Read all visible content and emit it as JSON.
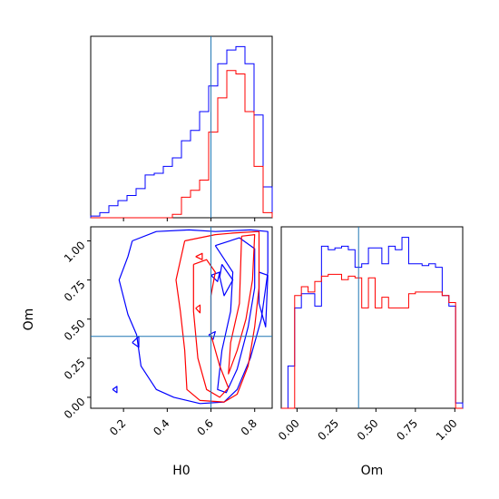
{
  "chart_data": {
    "type": "corner",
    "parameters": [
      "H0",
      "Om"
    ],
    "truth": {
      "H0": 0.6,
      "Om": 0.39
    },
    "series_colors": [
      "#0000ff",
      "#ff0000"
    ],
    "truth_line_color": "#1f77b4",
    "panels": [
      {
        "id": "H0-marginal",
        "type": "histogram",
        "param": "H0",
        "xlim": [
          0.05,
          0.88
        ],
        "ylim": [
          0,
          1.06
        ],
        "xticks": [
          0.2,
          0.4,
          0.6,
          0.8
        ],
        "show_yticks": false,
        "bin_edges": [
          0.05,
          0.0915,
          0.133,
          0.1745,
          0.216,
          0.2575,
          0.299,
          0.3405,
          0.382,
          0.4235,
          0.465,
          0.5065,
          0.548,
          0.5895,
          0.631,
          0.6725,
          0.714,
          0.7555,
          0.797,
          0.8385,
          0.88
        ],
        "series": [
          {
            "color": "#0000ff",
            "counts": [
              0.01,
              0.03,
              0.07,
              0.1,
              0.13,
              0.17,
              0.25,
              0.26,
              0.3,
              0.35,
              0.45,
              0.51,
              0.62,
              0.77,
              0.9,
              0.98,
              1.0,
              0.9,
              0.6,
              0.18
            ]
          },
          {
            "color": "#ff0000",
            "counts": [
              0,
              0,
              0,
              0,
              0,
              0,
              0,
              0,
              0,
              0.02,
              0.12,
              0.16,
              0.22,
              0.5,
              0.7,
              0.86,
              0.84,
              0.62,
              0.3,
              0.03
            ]
          }
        ]
      },
      {
        "id": "Om-marginal",
        "type": "histogram",
        "param": "Om",
        "xlim": [
          -0.1,
          1.05
        ],
        "ylim": [
          0,
          1.03
        ],
        "xticks": [
          0.0,
          0.25,
          0.5,
          0.75,
          1.0
        ],
        "xticklabels": [
          "0.00",
          "0.25",
          "0.50",
          "0.75",
          "1.00"
        ],
        "show_yticks": false,
        "bin_edges": [
          -0.1,
          -0.0575,
          -0.015,
          0.0275,
          0.07,
          0.1125,
          0.155,
          0.1975,
          0.24,
          0.2825,
          0.325,
          0.3675,
          0.41,
          0.4525,
          0.495,
          0.5375,
          0.58,
          0.6225,
          0.665,
          0.7075,
          0.75,
          0.7925,
          0.835,
          0.8775,
          0.92,
          0.9625,
          1.005,
          1.05
        ],
        "series": [
          {
            "color": "#0000ff",
            "counts": [
              0,
              0.24,
              0.57,
              0.65,
              0.65,
              0.58,
              0.92,
              0.9,
              0.91,
              0.92,
              0.9,
              0.8,
              0.82,
              0.91,
              0.91,
              0.82,
              0.92,
              0.9,
              0.97,
              0.82,
              0.82,
              0.81,
              0.82,
              0.8,
              0.64,
              0.58,
              0.03
            ]
          },
          {
            "color": "#ff0000",
            "counts": [
              0,
              0,
              0.64,
              0.69,
              0.66,
              0.72,
              0.75,
              0.76,
              0.76,
              0.73,
              0.75,
              0.74,
              0.57,
              0.74,
              0.57,
              0.63,
              0.57,
              0.57,
              0.57,
              0.65,
              0.66,
              0.66,
              0.66,
              0.66,
              0.64,
              0.6,
              0
            ]
          }
        ]
      },
      {
        "id": "H0-Om-joint",
        "type": "contour",
        "xparam": "H0",
        "yparam": "Om",
        "xlim": [
          0.05,
          0.88
        ],
        "ylim": [
          -0.07,
          1.09
        ],
        "xticks": [
          0.2,
          0.4,
          0.6,
          0.8
        ],
        "yticks": [
          0.0,
          0.25,
          0.5,
          0.75,
          1.0
        ],
        "yticklabels": [
          "0.00",
          "0.25",
          "0.50",
          "0.75",
          "1.00"
        ],
        "contours": [
          {
            "color": "#0000ff",
            "points": [
              [
                0.24,
                1.0
              ],
              [
                0.35,
                1.06
              ],
              [
                0.5,
                1.07
              ],
              [
                0.62,
                1.06
              ],
              [
                0.78,
                1.07
              ],
              [
                0.86,
                1.06
              ],
              [
                0.86,
                0.8
              ],
              [
                0.83,
                0.5
              ],
              [
                0.78,
                0.25
              ],
              [
                0.72,
                0.05
              ],
              [
                0.66,
                -0.03
              ],
              [
                0.55,
                -0.04
              ],
              [
                0.43,
                0.0
              ],
              [
                0.35,
                0.05
              ],
              [
                0.28,
                0.2
              ],
              [
                0.26,
                0.4
              ],
              [
                0.22,
                0.53
              ],
              [
                0.18,
                0.75
              ],
              [
                0.22,
                0.9
              ],
              [
                0.24,
                1.0
              ]
            ]
          },
          {
            "color": "#0000ff",
            "points": [
              [
                0.62,
                0.97
              ],
              [
                0.73,
                1.02
              ],
              [
                0.8,
                0.95
              ],
              [
                0.8,
                0.7
              ],
              [
                0.77,
                0.45
              ],
              [
                0.72,
                0.18
              ],
              [
                0.67,
                0.03
              ],
              [
                0.63,
                0.05
              ],
              [
                0.65,
                0.3
              ],
              [
                0.69,
                0.55
              ],
              [
                0.7,
                0.8
              ],
              [
                0.62,
                0.97
              ]
            ]
          },
          {
            "color": "#0000ff",
            "points": [
              [
                0.65,
                0.85
              ],
              [
                0.7,
                0.75
              ],
              [
                0.66,
                0.65
              ],
              [
                0.64,
                0.77
              ],
              [
                0.65,
                0.85
              ]
            ]
          },
          {
            "color": "#0000ff",
            "points": [
              [
                0.6,
                0.78
              ],
              [
                0.64,
                0.8
              ],
              [
                0.63,
                0.74
              ],
              [
                0.6,
                0.78
              ]
            ]
          },
          {
            "color": "#0000ff",
            "points": [
              [
                0.59,
                0.4
              ],
              [
                0.62,
                0.42
              ],
              [
                0.61,
                0.37
              ],
              [
                0.59,
                0.4
              ]
            ]
          },
          {
            "color": "#0000ff",
            "points": [
              [
                0.24,
                0.35
              ],
              [
                0.27,
                0.39
              ],
              [
                0.27,
                0.32
              ],
              [
                0.24,
                0.35
              ]
            ]
          },
          {
            "color": "#0000ff",
            "points": [
              [
                0.15,
                0.05
              ],
              [
                0.17,
                0.07
              ],
              [
                0.17,
                0.03
              ],
              [
                0.15,
                0.05
              ]
            ]
          },
          {
            "color": "#0000ff",
            "points": [
              [
                0.82,
                0.8
              ],
              [
                0.86,
                0.78
              ],
              [
                0.85,
                0.45
              ],
              [
                0.82,
                0.6
              ],
              [
                0.82,
                0.8
              ]
            ]
          },
          {
            "color": "#ff0000",
            "points": [
              [
                0.48,
                1.0
              ],
              [
                0.62,
                1.04
              ],
              [
                0.7,
                1.05
              ],
              [
                0.82,
                1.06
              ],
              [
                0.82,
                0.7
              ],
              [
                0.8,
                0.45
              ],
              [
                0.77,
                0.2
              ],
              [
                0.72,
                0.02
              ],
              [
                0.66,
                -0.03
              ],
              [
                0.55,
                -0.02
              ],
              [
                0.49,
                0.05
              ],
              [
                0.48,
                0.3
              ],
              [
                0.46,
                0.55
              ],
              [
                0.44,
                0.75
              ],
              [
                0.48,
                1.0
              ]
            ]
          },
          {
            "color": "#ff0000",
            "points": [
              [
                0.52,
                0.85
              ],
              [
                0.58,
                0.88
              ],
              [
                0.62,
                0.8
              ],
              [
                0.6,
                0.65
              ],
              [
                0.6,
                0.4
              ],
              [
                0.64,
                0.2
              ],
              [
                0.68,
                0.06
              ],
              [
                0.64,
                0.0
              ],
              [
                0.58,
                0.05
              ],
              [
                0.54,
                0.25
              ],
              [
                0.52,
                0.55
              ],
              [
                0.52,
                0.85
              ]
            ]
          },
          {
            "color": "#ff0000",
            "points": [
              [
                0.74,
                1.03
              ],
              [
                0.8,
                1.04
              ],
              [
                0.79,
                0.75
              ],
              [
                0.76,
                0.5
              ],
              [
                0.72,
                0.3
              ],
              [
                0.68,
                0.15
              ],
              [
                0.69,
                0.35
              ],
              [
                0.73,
                0.6
              ],
              [
                0.74,
                1.03
              ]
            ]
          },
          {
            "color": "#ff0000",
            "points": [
              [
                0.53,
                0.9
              ],
              [
                0.56,
                0.92
              ],
              [
                0.56,
                0.88
              ],
              [
                0.53,
                0.9
              ]
            ]
          },
          {
            "color": "#ff0000",
            "points": [
              [
                0.53,
                0.57
              ],
              [
                0.55,
                0.59
              ],
              [
                0.55,
                0.54
              ],
              [
                0.53,
                0.57
              ]
            ]
          }
        ]
      }
    ],
    "axis_labels": {
      "joint_x": "H0",
      "joint_y": "Om",
      "om_x": "Om"
    }
  }
}
